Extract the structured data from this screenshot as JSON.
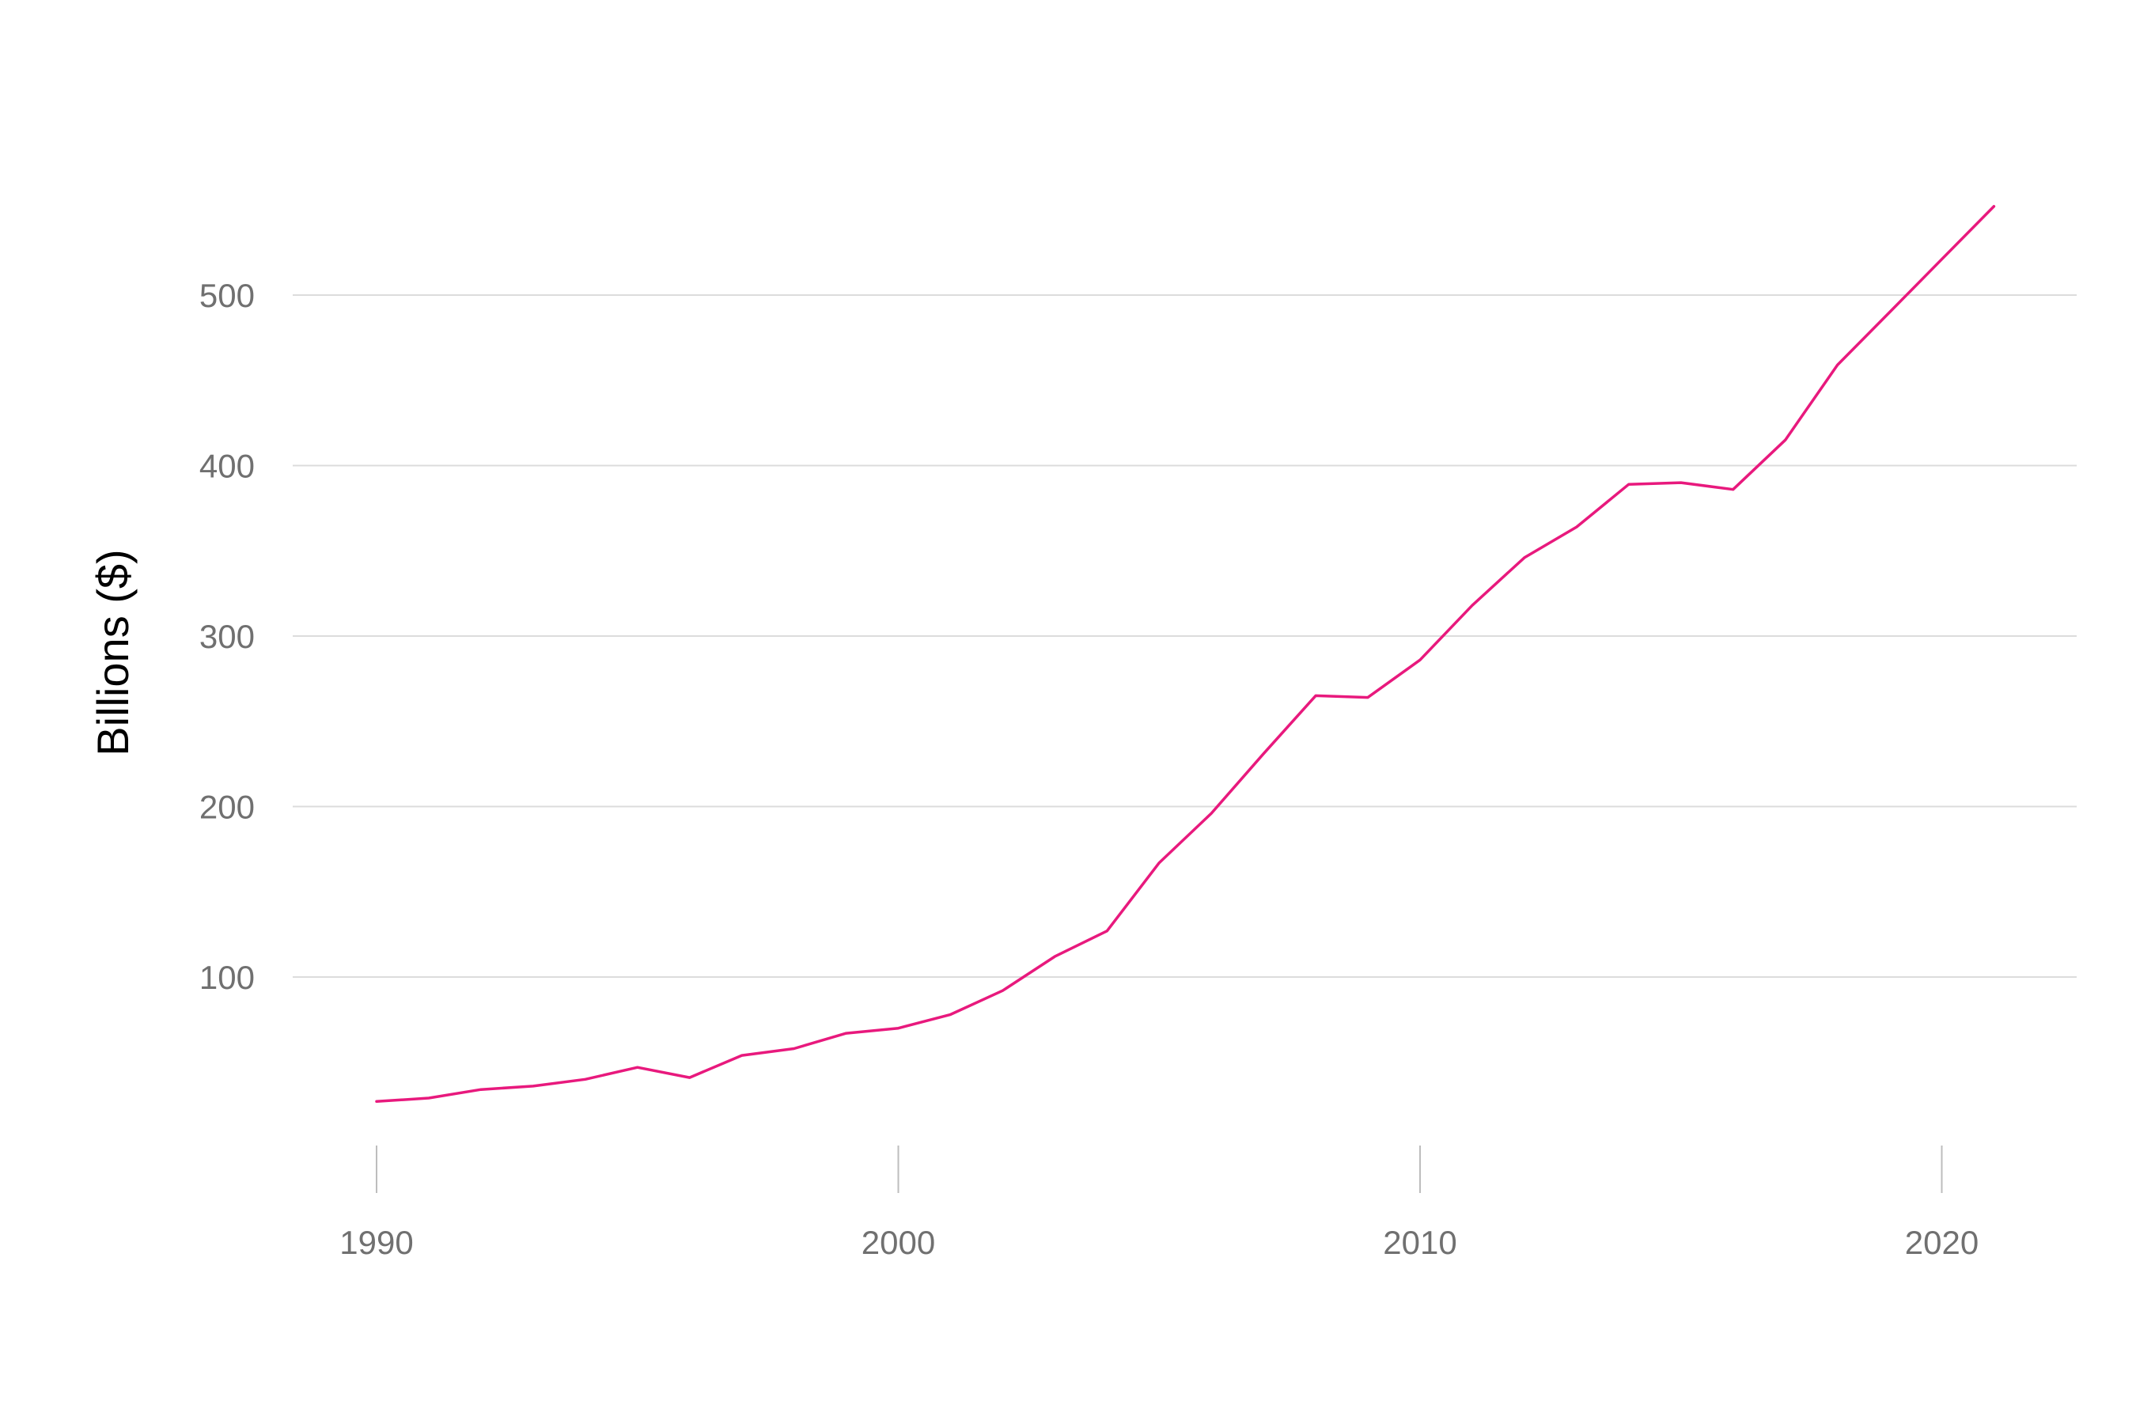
{
  "chart_data": {
    "type": "line",
    "title": "",
    "xlabel": "",
    "ylabel": "Billions ($)",
    "xlim": [
      1987.5,
      2022.8
    ],
    "ylim": [
      0,
      570
    ],
    "x_ticks": [
      1990,
      2000,
      2010,
      2020
    ],
    "y_ticks": [
      100,
      200,
      300,
      400,
      500
    ],
    "grid": "horizontal",
    "line_color": "#e8197d",
    "series": [
      {
        "name": "Billions ($)",
        "x": [
          1990,
          1991,
          1992,
          1993,
          1994,
          1995,
          1996,
          1997,
          1998,
          1999,
          2000,
          2001,
          2002,
          2003,
          2004,
          2005,
          2006,
          2007,
          2008,
          2009,
          2010,
          2011,
          2012,
          2013,
          2014,
          2015,
          2016,
          2017,
          2018,
          2019,
          2020,
          2021
        ],
        "values": [
          27,
          29,
          34,
          36,
          40,
          47,
          41,
          54,
          58,
          67,
          70,
          78,
          92,
          112,
          127,
          167,
          196,
          231,
          265,
          264,
          286,
          318,
          346,
          364,
          389,
          390,
          386,
          415,
          459,
          490,
          521,
          552
        ]
      }
    ]
  }
}
